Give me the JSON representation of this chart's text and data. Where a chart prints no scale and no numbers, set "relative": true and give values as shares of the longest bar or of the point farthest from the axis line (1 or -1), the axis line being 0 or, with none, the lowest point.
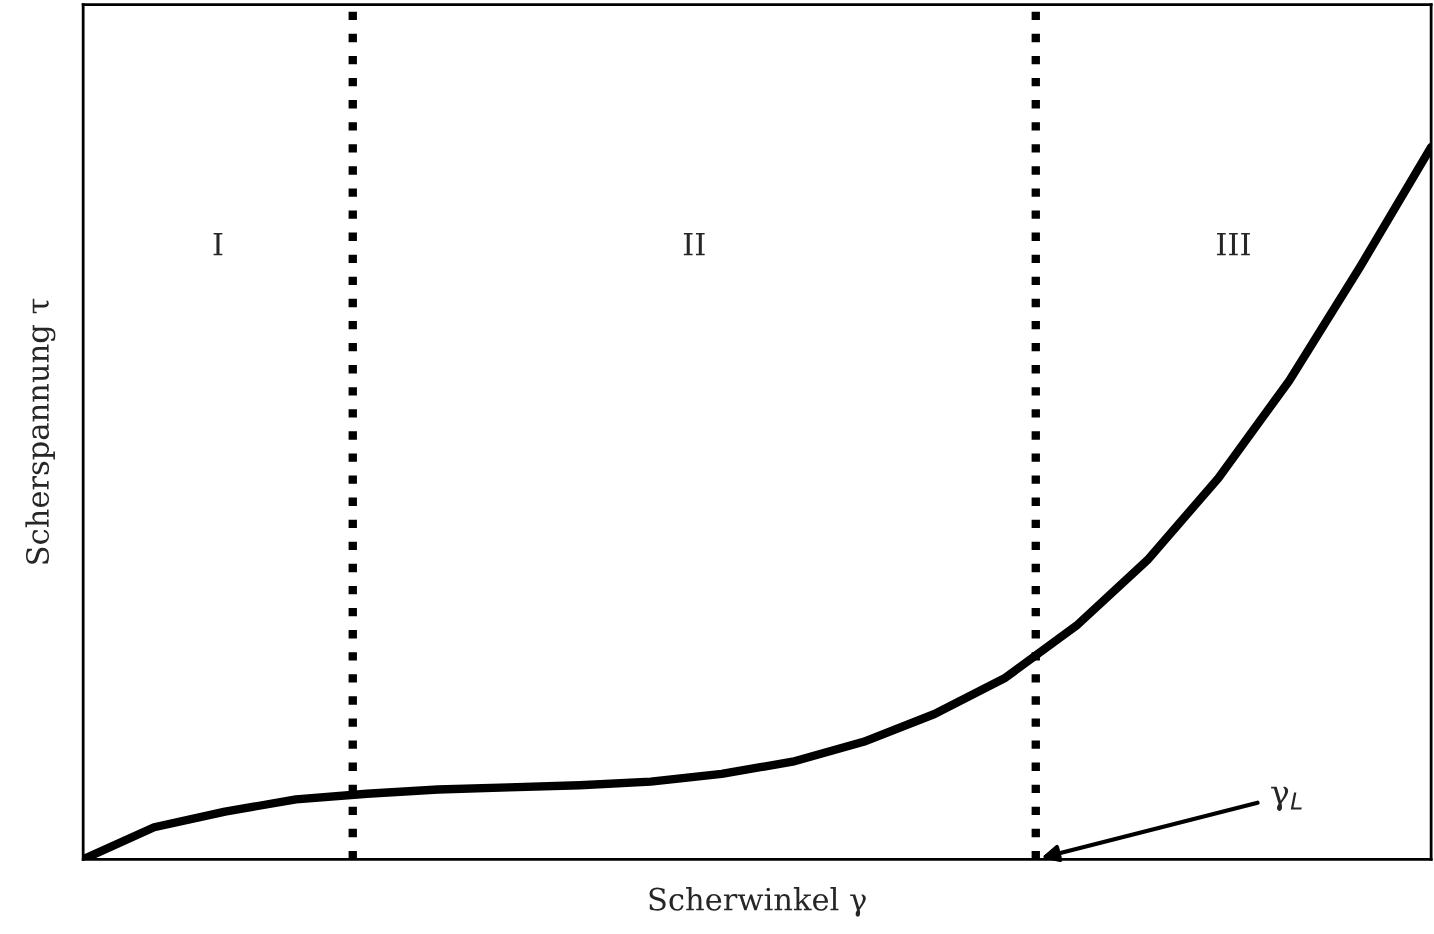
{
  "chart_data": {
    "type": "line",
    "relative": true,
    "xlabel": "Scherwinkel γ",
    "ylabel": "Scherspannung τ",
    "categories": [
      null,
      null,
      null,
      null,
      null,
      null,
      null,
      null,
      null,
      null,
      null,
      null,
      null,
      null,
      null,
      null,
      null,
      null,
      null,
      null
    ],
    "series": [
      {
        "color": "#000000",
        "values": [
          0,
          0.045,
          0.067,
          0.084,
          0.092,
          0.098,
          0.101,
          0.104,
          0.109,
          0.12,
          0.137,
          0.165,
          0.204,
          0.255,
          0.328,
          0.42,
          0.535,
          0.672,
          0.832,
          1
        ]
      }
    ],
    "annotations": [
      "I",
      "II",
      "III",
      "γ$_{L}$"
    ],
    "marker": "none",
    "line_style": "solid",
    "legend": false,
    "tick_labels": false
  }
}
